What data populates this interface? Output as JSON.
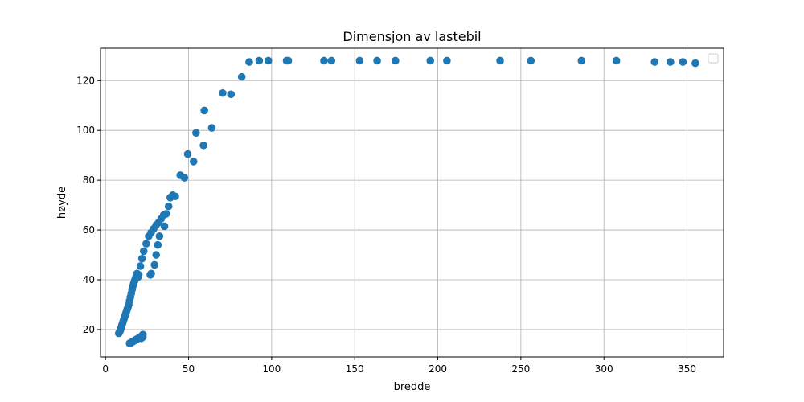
{
  "chart_data": {
    "type": "scatter",
    "title": "Dimensjon av lastebil",
    "xlabel": "bredde",
    "ylabel": "høyde",
    "xlim": [
      -3,
      372
    ],
    "ylim": [
      9,
      133
    ],
    "xticks": [
      0,
      50,
      100,
      150,
      200,
      250,
      300,
      350
    ],
    "yticks": [
      20,
      40,
      60,
      80,
      100,
      120
    ],
    "grid": true,
    "legend": "top-right",
    "marker_color": "#1f77b4",
    "series": [
      {
        "x": [
          8,
          8.5,
          9,
          9.3,
          9.7,
          10,
          10.4,
          10.8,
          11.2,
          11.6,
          12,
          12.4,
          12.8,
          13.2,
          13.6,
          14,
          14.5,
          15,
          15.5,
          16,
          16.5,
          17,
          17.5,
          18,
          18.5,
          19,
          19.5,
          20,
          21,
          22,
          23,
          24.5,
          26,
          27.5,
          29,
          30.5,
          32,
          33.5,
          35,
          36.5,
          38,
          39,
          40.5,
          42,
          45,
          47.5,
          49.5,
          53,
          54.5,
          59,
          59.5,
          64,
          70.5,
          75.5,
          82,
          86.5,
          92.5,
          98,
          109,
          110,
          131.5,
          136,
          153,
          163.5,
          174.5,
          195.5,
          205.5,
          237.5,
          256,
          286.5,
          307.5,
          330.5,
          340,
          347.5,
          355,
          14.5,
          15,
          15.5,
          16,
          16.5,
          17,
          17.5,
          18,
          18.5,
          19,
          19.5,
          20,
          20.5,
          21,
          21.5,
          22,
          22.5,
          22,
          22.5,
          27,
          27.5,
          29.5,
          30.5,
          31.5,
          32.5,
          35.5
        ],
        "y": [
          18.5,
          19,
          19.8,
          20.5,
          21.3,
          22,
          22.8,
          23.6,
          24.4,
          25.2,
          26,
          26.8,
          27.6,
          28.4,
          29.2,
          30,
          31.5,
          33,
          34.5,
          36,
          37.5,
          38.5,
          39.5,
          40.5,
          41.5,
          42.5,
          41,
          42,
          45.5,
          48.5,
          51.5,
          54.5,
          57.5,
          59,
          60.5,
          62,
          63,
          64.5,
          66,
          66.5,
          69.5,
          73,
          74,
          73.5,
          82,
          81,
          90.5,
          87.5,
          99,
          94,
          108,
          101,
          115,
          114.5,
          121.5,
          127.5,
          128,
          128,
          128,
          128,
          128,
          128,
          128,
          128,
          128,
          128,
          128,
          128,
          128,
          128,
          128,
          127.5,
          127.5,
          127.5,
          127,
          14.5,
          14.5,
          14.8,
          15,
          15.2,
          15.4,
          15.6,
          15.8,
          16,
          16.2,
          16.4,
          16.6,
          16.8,
          17,
          16.5,
          16.8,
          17,
          17.5,
          18,
          42,
          42.5,
          46,
          50,
          54,
          57.5,
          61.5
        ]
      }
    ]
  }
}
